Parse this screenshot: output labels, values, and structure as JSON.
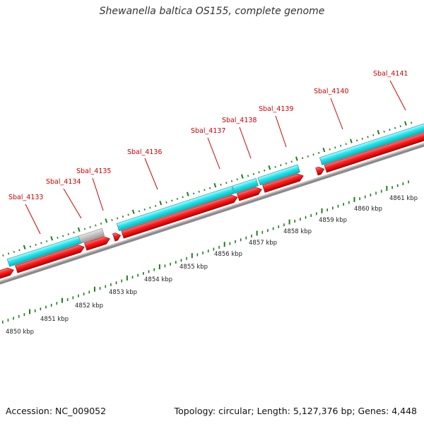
{
  "title": "Shewanella baltica OS155, complete genome",
  "footer": {
    "accession": "Accession: NC_009052",
    "summary": "Topology: circular; Length: 5,127,376 bp; Genes: 4,448"
  },
  "colors": {
    "label": "#cc0000",
    "cds": "#ff0000",
    "gene": "#22e5ec",
    "pseudo": "#c0c0c0",
    "backbone": "#8a8a8a",
    "tick": "#1f7a1f"
  },
  "loci": [
    "Sbal_4133",
    "Sbal_4134",
    "Sbal_4135",
    "Sbal_4136",
    "Sbal_4137",
    "Sbal_4138",
    "Sbal_4139",
    "Sbal_4140",
    "Sbal_4141"
  ],
  "scale_labels": [
    "4850 kbp",
    "4851 kbp",
    "4852 kbp",
    "4853 kbp",
    "4854 kbp",
    "4855 kbp",
    "4856 kbp",
    "4857 kbp",
    "4858 kbp",
    "4859 kbp",
    "4860 kbp",
    "4861 kbp"
  ]
}
